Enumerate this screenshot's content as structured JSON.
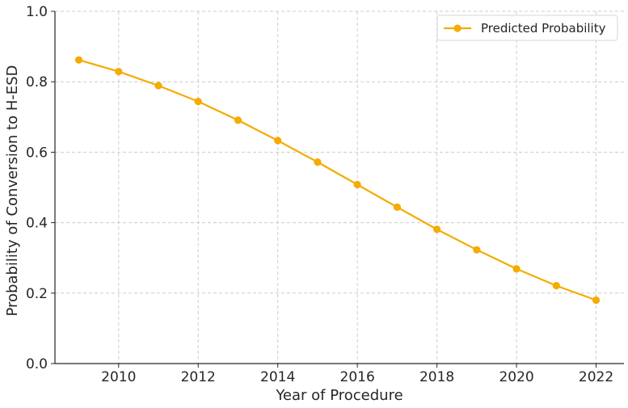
{
  "chart_data": {
    "type": "line",
    "title": "",
    "xlabel": "Year of Procedure",
    "ylabel": "Probability of Conversion to H-ESD",
    "x": [
      2009,
      2010,
      2011,
      2012,
      2013,
      2014,
      2015,
      2016,
      2017,
      2018,
      2019,
      2020,
      2021,
      2022
    ],
    "series": [
      {
        "name": "Predicted Probability",
        "color": "#f5ab00",
        "marker": "circle",
        "values": [
          0.862,
          0.829,
          0.789,
          0.744,
          0.691,
          0.633,
          0.572,
          0.508,
          0.444,
          0.381,
          0.323,
          0.269,
          0.221,
          0.18
        ]
      }
    ],
    "xlim": [
      2008.4,
      2022.7
    ],
    "ylim": [
      0.0,
      1.0
    ],
    "xticks": [
      2010,
      2012,
      2014,
      2016,
      2018,
      2020,
      2022
    ],
    "xtick_labels": [
      "2010",
      "2012",
      "2014",
      "2016",
      "2018",
      "2020",
      "2022"
    ],
    "yticks": [
      0.0,
      0.2,
      0.4,
      0.6,
      0.8,
      1.0
    ],
    "ytick_labels": [
      "0.0",
      "0.2",
      "0.4",
      "0.6",
      "0.8",
      "1.0"
    ],
    "grid": true,
    "legend_position": "top-right"
  }
}
